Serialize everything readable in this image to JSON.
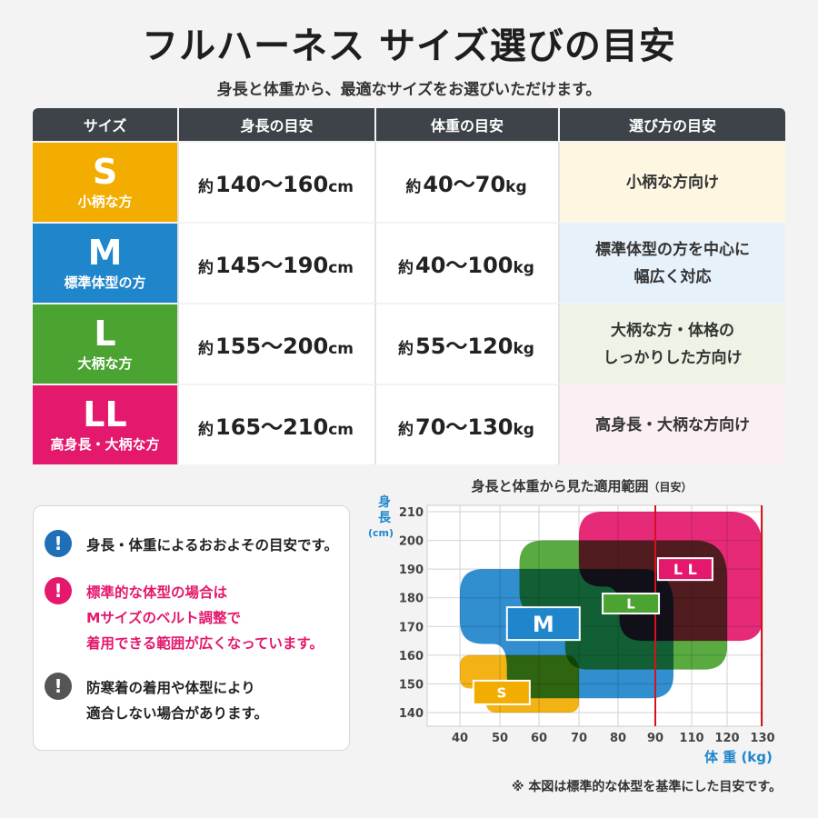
{
  "header": {
    "title": "フルハーネス サイズ選びの目安",
    "subtitle": "身長と体重から、最適なサイズをお選びいただけます。"
  },
  "table": {
    "headers": [
      "サイズ",
      "身長の目安",
      "体重の目安",
      "選び方の目安"
    ],
    "rows": [
      {
        "size": "S",
        "desc": "小柄な方",
        "prefix_h": "約",
        "height": "140〜160",
        "height_unit": "cm",
        "prefix_w": "約",
        "weight": "40〜70",
        "weight_unit": "kg",
        "guide": [
          "小柄な方向け"
        ]
      },
      {
        "size": "M",
        "desc": "標準体型の方",
        "prefix_h": "約",
        "height": "145〜190",
        "height_unit": "cm",
        "prefix_w": "約",
        "weight": "40〜100",
        "weight_unit": "kg",
        "guide": [
          "標準体型の方を中心に",
          "幅広く対応"
        ]
      },
      {
        "size": "L",
        "desc": "大柄な方",
        "prefix_h": "約",
        "height": "155〜200",
        "height_unit": "cm",
        "prefix_w": "約",
        "weight": "55〜120",
        "weight_unit": "kg",
        "guide": [
          "大柄な方・体格の",
          "しっかりした方向け"
        ]
      },
      {
        "size": "LL",
        "desc": "高身長・大柄な方",
        "prefix_h": "約",
        "height": "165〜210",
        "height_unit": "cm",
        "prefix_w": "約",
        "weight": "70〜130",
        "weight_unit": "kg",
        "guide": [
          "高身長・大柄な方向け"
        ]
      }
    ]
  },
  "notes": [
    {
      "icon": "!",
      "lines": [
        "身長・体重によるおおよその目安です。"
      ]
    },
    {
      "icon": "!",
      "lines": [
        "標準的な体型の場合は",
        "Mサイズのベルト調整で",
        "着用できる範囲が広くなっています。"
      ]
    },
    {
      "icon": "!",
      "lines": [
        "防寒着の着用や体型により",
        "適合しない場合があります。"
      ]
    }
  ],
  "colors": {
    "S": "#f2ad00",
    "M": "#1f86cc",
    "L": "#4ba331",
    "LL": "#e4186d",
    "limit": "#d7121c"
  },
  "chart_data": {
    "type": "area",
    "title": "身長と体重から見た適用範囲",
    "title_note": "（目安）",
    "ylabel": "身長",
    "yunit": "(cm)",
    "xlabel": "体 重 (kg)",
    "xticks": [
      40,
      50,
      60,
      70,
      80,
      90,
      110,
      120,
      130
    ],
    "yticks": [
      140,
      150,
      160,
      170,
      180,
      190,
      200,
      210
    ],
    "xlim": [
      40,
      130
    ],
    "ylim": [
      137,
      212
    ],
    "grid": true,
    "reference_line_x": 90,
    "series": [
      {
        "name": "S",
        "weight": [
          40,
          70
        ],
        "height": [
          140,
          160
        ]
      },
      {
        "name": "M",
        "weight": [
          40,
          100
        ],
        "height": [
          145,
          190
        ]
      },
      {
        "name": "L",
        "weight": [
          55,
          120
        ],
        "height": [
          155,
          200
        ]
      },
      {
        "name": "LL",
        "weight": [
          70,
          130
        ],
        "height": [
          165,
          210
        ]
      }
    ]
  },
  "footnote": "※ 本図は標準的な体型を基準にした目安です。"
}
